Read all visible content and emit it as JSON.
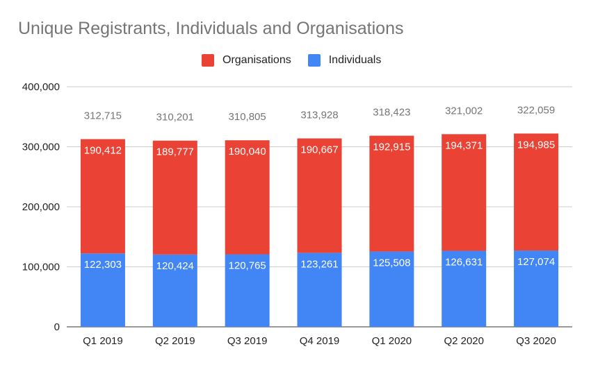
{
  "chart_data": {
    "type": "bar",
    "stacked": true,
    "title": "Unique Registrants, Individuals and Organisations",
    "categories": [
      "Q1 2019",
      "Q2 2019",
      "Q3 2019",
      "Q4 2019",
      "Q1 2020",
      "Q2 2020",
      "Q3 2020"
    ],
    "series": [
      {
        "name": "Individuals",
        "color": "#4285f4",
        "values": [
          122303,
          120424,
          120765,
          123261,
          125508,
          126631,
          127074
        ],
        "labels": [
          "122,303",
          "120,424",
          "120,765",
          "123,261",
          "125,508",
          "126,631",
          "127,074"
        ]
      },
      {
        "name": "Organisations",
        "color": "#ea4335",
        "values": [
          190412,
          189777,
          190040,
          190667,
          192915,
          194371,
          194985
        ],
        "labels": [
          "190,412",
          "189,777",
          "190,040",
          "190,667",
          "192,915",
          "194,371",
          "194,985"
        ]
      }
    ],
    "totals": [
      312715,
      310201,
      310805,
      313928,
      318423,
      321002,
      322059
    ],
    "total_labels": [
      "312,715",
      "310,201",
      "310,805",
      "313,928",
      "318,423",
      "321,002",
      "322,059"
    ],
    "ylim": [
      0,
      400000
    ],
    "yticks": [
      0,
      100000,
      200000,
      300000,
      400000
    ],
    "ytick_labels": [
      "0",
      "100,000",
      "200,000",
      "300,000",
      "400,000"
    ],
    "xlabel": "",
    "ylabel": "",
    "grid": true,
    "legend_position": "top",
    "legend_order": [
      "Organisations",
      "Individuals"
    ]
  }
}
